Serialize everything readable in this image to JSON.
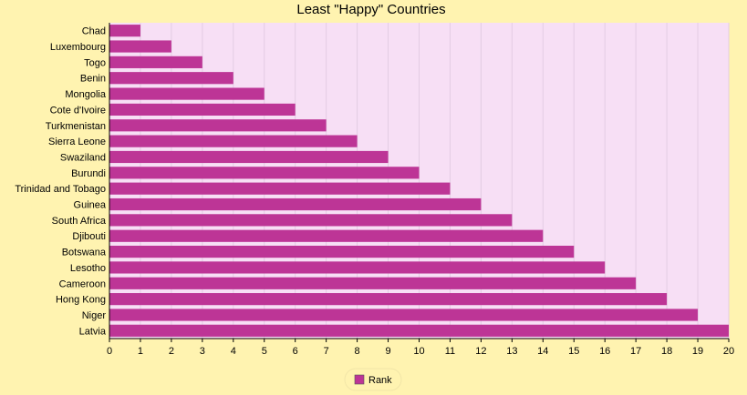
{
  "chart_data": {
    "type": "bar",
    "orientation": "horizontal",
    "title": "Least \"Happy\" Countries",
    "xlabel": "",
    "ylabel": "",
    "categories": [
      "Chad",
      "Luxembourg",
      "Togo",
      "Benin",
      "Mongolia",
      "Cote d'Ivoire",
      "Turkmenistan",
      "Sierra Leone",
      "Swaziland",
      "Burundi",
      "Trinidad and Tobago",
      "Guinea",
      "South Africa",
      "Djibouti",
      "Botswana",
      "Lesotho",
      "Cameroon",
      "Hong Kong",
      "Niger",
      "Latvia"
    ],
    "series": [
      {
        "name": "Rank",
        "values": [
          1,
          2,
          3,
          4,
          5,
          6,
          7,
          8,
          9,
          10,
          11,
          12,
          13,
          14,
          15,
          16,
          17,
          18,
          19,
          20
        ]
      }
    ],
    "xlim": [
      0,
      20
    ],
    "xticks": [
      0,
      1,
      2,
      3,
      4,
      5,
      6,
      7,
      8,
      9,
      10,
      11,
      12,
      13,
      14,
      15,
      16,
      17,
      18,
      19,
      20
    ],
    "grid": true,
    "legend": "bottom-center",
    "colors": {
      "bar": "#BD3596",
      "plot_background": "#F7DFF5",
      "page_background": "#FFF3B0",
      "grid": "#E3CCE3"
    }
  }
}
